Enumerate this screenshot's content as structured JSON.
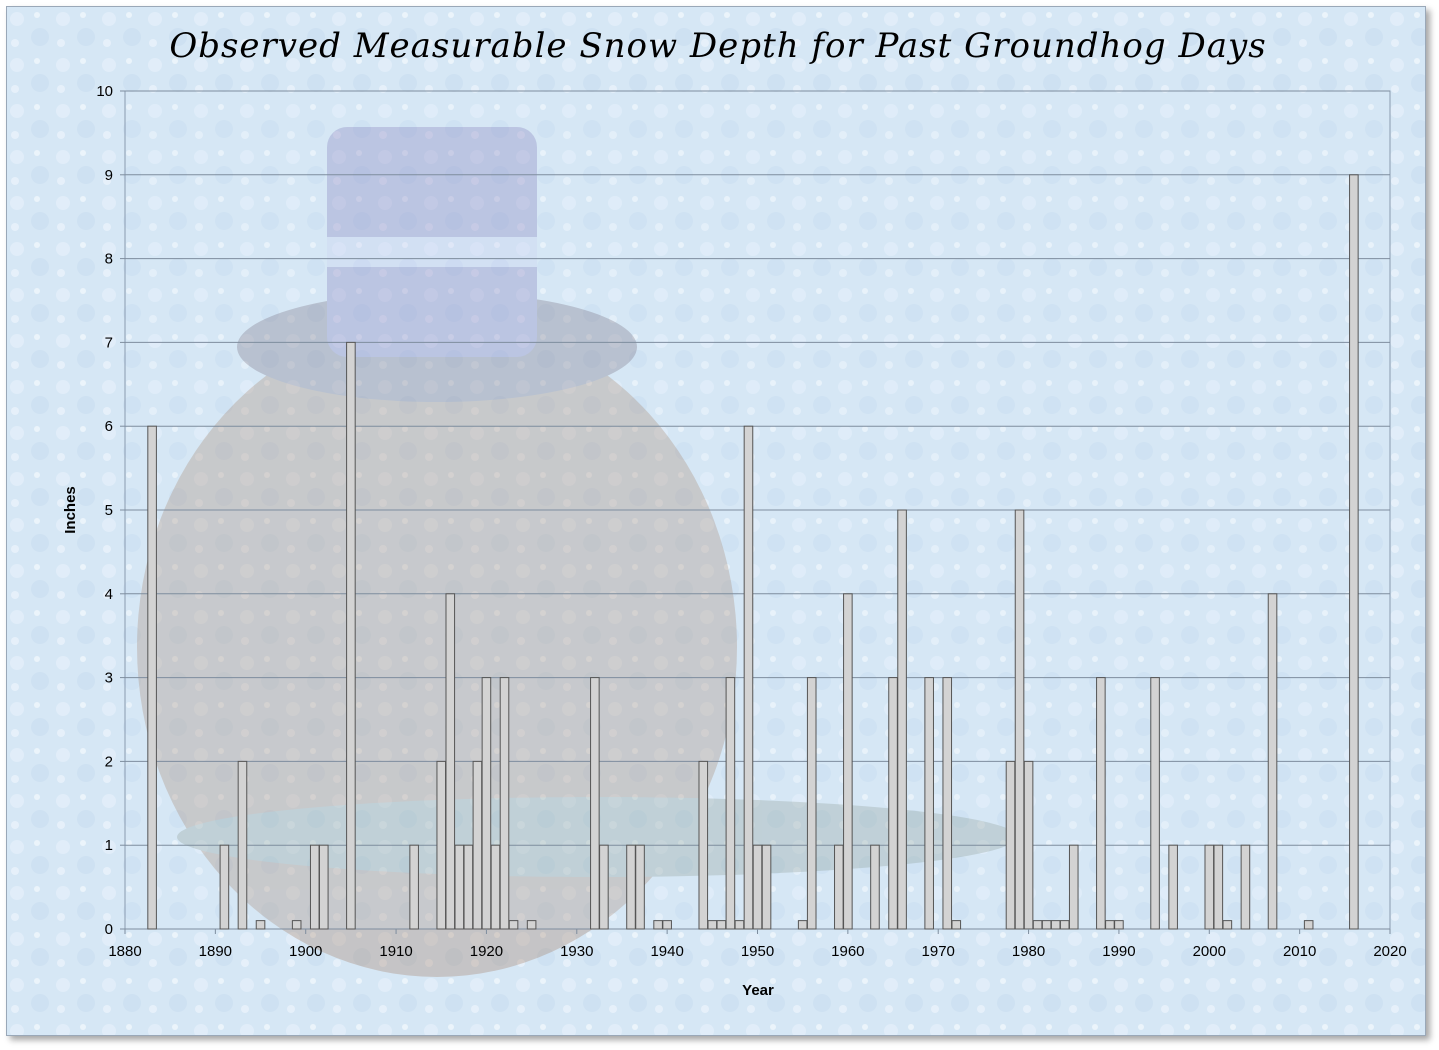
{
  "chart_data": {
    "type": "bar",
    "title": "Observed Measurable Snow Depth for Past Groundhog Days",
    "xlabel": "Year",
    "ylabel": "Inches",
    "xlim": [
      1880,
      2020
    ],
    "ylim": [
      0,
      10
    ],
    "x_ticks": [
      1880,
      1890,
      1900,
      1910,
      1920,
      1930,
      1940,
      1950,
      1960,
      1970,
      1980,
      1990,
      2000,
      2010,
      2020
    ],
    "y_ticks": [
      0,
      1,
      2,
      3,
      4,
      5,
      6,
      7,
      8,
      9,
      10
    ],
    "grid": true,
    "legend": "none",
    "bar_color": "#d3d3d3",
    "bar_edge_color": "#555555",
    "series": [
      {
        "x": [
          1883,
          1891,
          1893,
          1895,
          1899,
          1901,
          1902,
          1905,
          1912,
          1915,
          1916,
          1917,
          1918,
          1919,
          1920,
          1921,
          1922,
          1923,
          1925,
          1932,
          1933,
          1936,
          1937,
          1939,
          1940,
          1944,
          1945,
          1946,
          1947,
          1948,
          1949,
          1950,
          1951,
          1955,
          1956,
          1959,
          1960,
          1963,
          1965,
          1966,
          1969,
          1971,
          1972,
          1978,
          1979,
          1980,
          1981,
          1982,
          1983,
          1984,
          1985,
          1988,
          1989,
          1990,
          1994,
          1996,
          2000,
          2001,
          2002,
          2004,
          2007,
          2011,
          2016
        ],
        "values": [
          6,
          1,
          2,
          0.1,
          0.1,
          1,
          1,
          7,
          1,
          2,
          4,
          1,
          1,
          2,
          3,
          1,
          3,
          0.1,
          0.1,
          3,
          1,
          1,
          1,
          0.1,
          0.1,
          2,
          0.1,
          0.1,
          3,
          0.1,
          6,
          1,
          1,
          0.1,
          3,
          1,
          4,
          1,
          3,
          5,
          3,
          3,
          0.1,
          2,
          5,
          2,
          0.1,
          0.1,
          0.1,
          0.1,
          1,
          3,
          0.1,
          0.1,
          3,
          1,
          1,
          1,
          0.1,
          1,
          4,
          0.1,
          9
        ]
      }
    ]
  }
}
